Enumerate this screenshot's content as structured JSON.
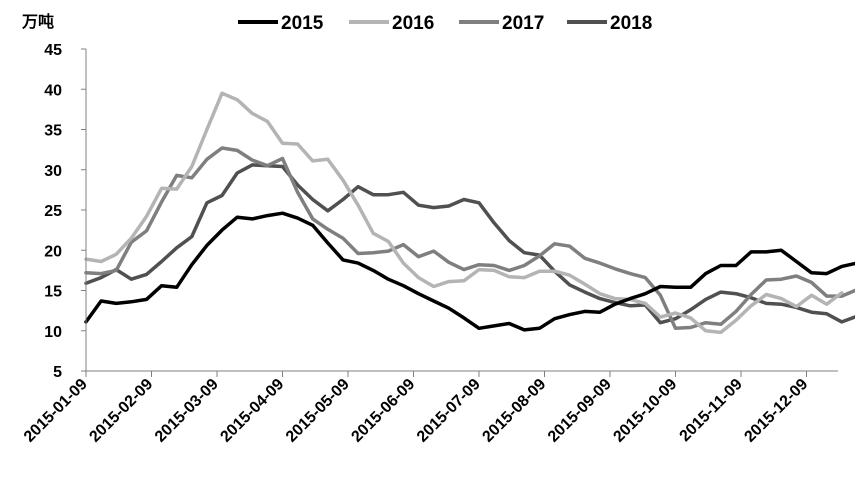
{
  "chart_data": {
    "type": "line",
    "title": "",
    "ylabel": "万吨",
    "xlabel": "",
    "ylim": [
      5,
      45
    ],
    "yticks": [
      5,
      10,
      15,
      20,
      25,
      30,
      35,
      40,
      45
    ],
    "x_tick_labels": [
      "2015-01-09",
      "2015-02-09",
      "2015-03-09",
      "2015-04-09",
      "2015-05-09",
      "2015-06-09",
      "2015-07-09",
      "2015-08-09",
      "2015-09-09",
      "2015-10-09",
      "2015-11-09",
      "2015-12-09"
    ],
    "grid": false,
    "legend_position": "top",
    "series": [
      {
        "name": "2015",
        "color": "#000000",
        "values": [
          11.1,
          13.7,
          13.4,
          13.6,
          13.9,
          15.6,
          15.4,
          18.2,
          20.6,
          22.5,
          24.1,
          23.9,
          24.3,
          24.6,
          24.0,
          23.1,
          20.9,
          18.8,
          18.4,
          17.5,
          16.4,
          15.6,
          14.6,
          13.7,
          12.8,
          11.6,
          10.3,
          10.6,
          10.9,
          10.1,
          10.3,
          11.5,
          12.0,
          12.4,
          12.3,
          13.3,
          14.0,
          14.6,
          15.5,
          15.4,
          15.4,
          17.1,
          18.1,
          18.1,
          19.8,
          19.8,
          20.0,
          18.6,
          17.2,
          17.1,
          18.0,
          18.4,
          17.8
        ]
      },
      {
        "name": "2016",
        "color": "#b4b4b4",
        "values": [
          18.9,
          18.6,
          19.5,
          21.5,
          24.2,
          27.7,
          27.6,
          30.4,
          35.0,
          39.5,
          38.7,
          37.0,
          36.0,
          33.3,
          33.2,
          31.1,
          31.3,
          28.7,
          25.6,
          22.1,
          21.1,
          18.4,
          16.6,
          15.5,
          16.1,
          16.2,
          17.6,
          17.5,
          16.7,
          16.6,
          17.4,
          17.4,
          16.9,
          15.8,
          14.6,
          14.0,
          13.9,
          13.4,
          11.7,
          12.2,
          11.6,
          10.0,
          9.8,
          11.3,
          13.1,
          14.5,
          14.0,
          13.0,
          14.4,
          13.3,
          14.7
        ]
      },
      {
        "name": "2017",
        "color": "#7f7f7f",
        "values": [
          17.2,
          17.1,
          17.5,
          21.0,
          22.4,
          26.0,
          29.3,
          29.0,
          31.3,
          32.7,
          32.4,
          31.2,
          30.5,
          31.4,
          27.2,
          23.9,
          22.6,
          21.5,
          19.6,
          19.7,
          19.9,
          20.7,
          19.2,
          19.9,
          18.5,
          17.6,
          18.2,
          18.1,
          17.5,
          18.1,
          19.3,
          20.8,
          20.5,
          19.0,
          18.4,
          17.7,
          17.1,
          16.6,
          14.4,
          10.3,
          10.4,
          11.0,
          10.8,
          12.4,
          14.5,
          16.3,
          16.4,
          16.8,
          16.0,
          14.3,
          14.3,
          15.1
        ]
      },
      {
        "name": "2018",
        "color": "#505050",
        "values": [
          15.9,
          16.6,
          17.6,
          16.4,
          17.0,
          18.6,
          20.3,
          21.7,
          25.9,
          26.8,
          29.6,
          30.6,
          30.5,
          30.4,
          28.1,
          26.3,
          24.9,
          26.3,
          27.9,
          26.9,
          26.9,
          27.2,
          25.6,
          25.3,
          25.5,
          26.3,
          25.9,
          23.4,
          21.2,
          19.7,
          19.4,
          17.4,
          15.7,
          14.8,
          14.0,
          13.5,
          13.1,
          13.2,
          11.0,
          11.5,
          12.6,
          13.9,
          14.8,
          14.6,
          14.1,
          13.4,
          13.3,
          12.9,
          12.3,
          12.1,
          11.1,
          11.8
        ]
      }
    ]
  }
}
